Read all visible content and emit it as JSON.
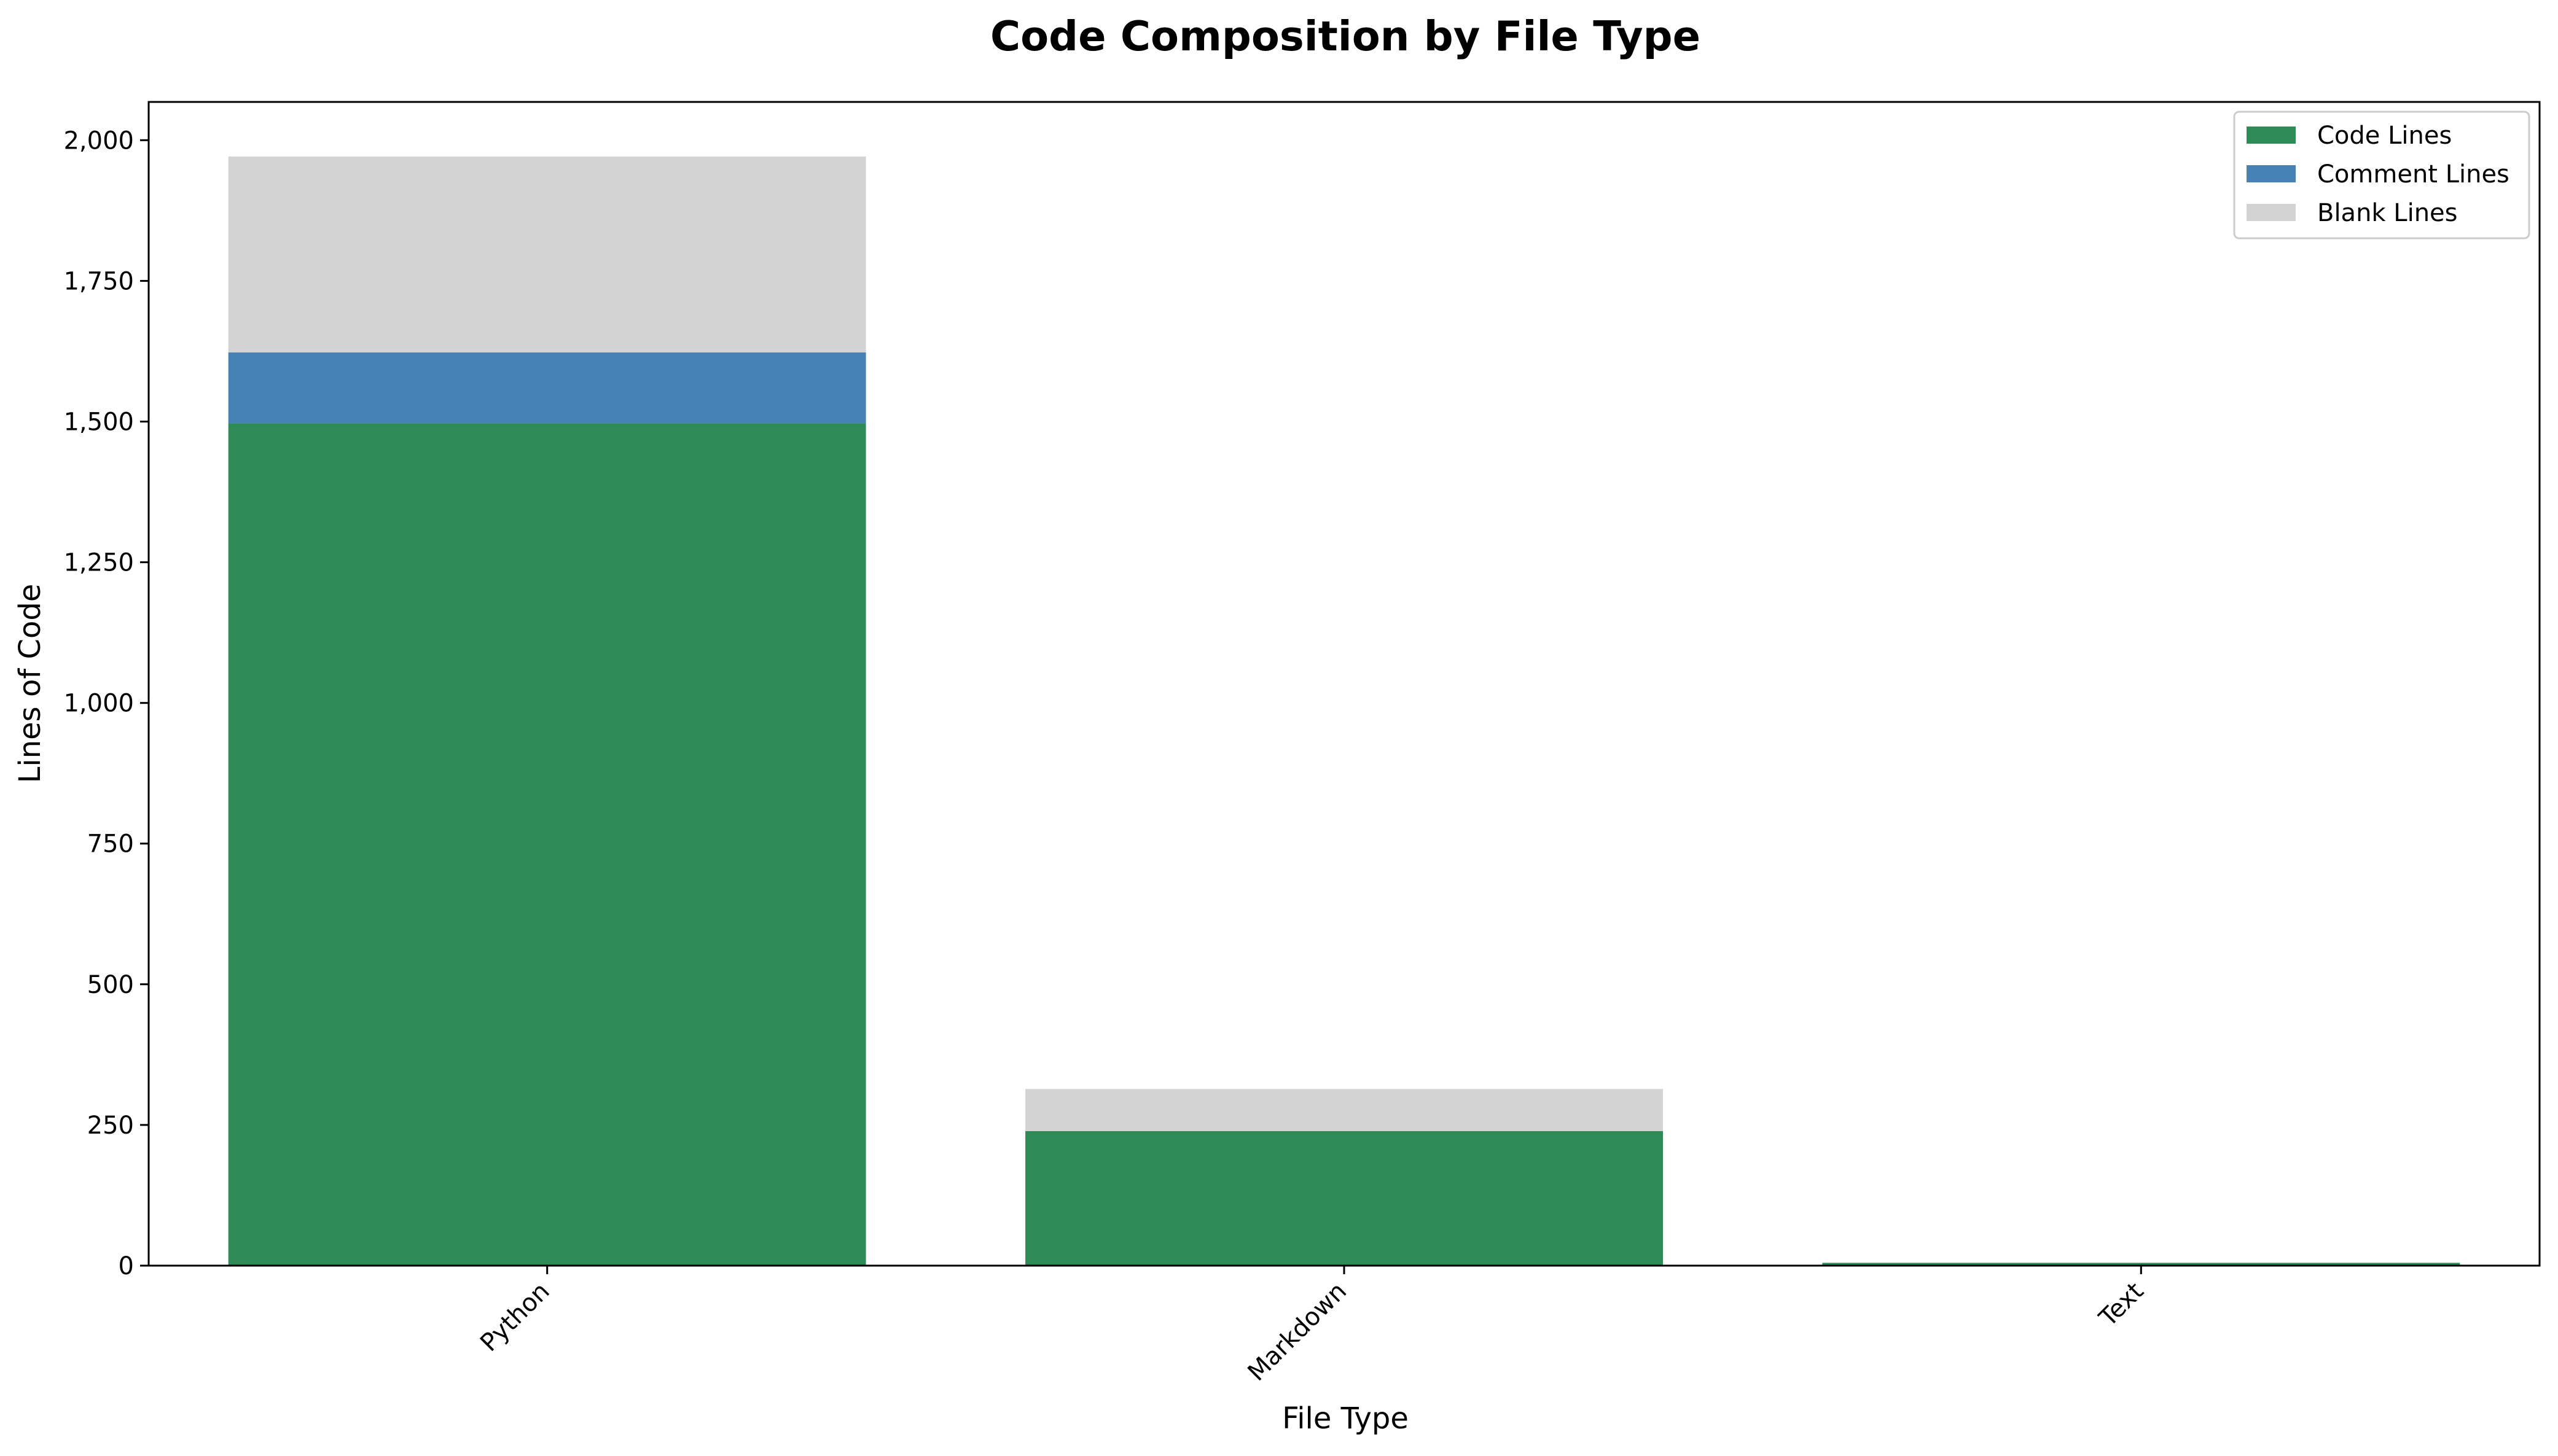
{
  "chart_data": {
    "type": "bar",
    "stacked": true,
    "title": "Code Composition by File Type",
    "xlabel": "File Type",
    "ylabel": "Lines of Code",
    "categories": [
      "Python",
      "Markdown",
      "Text"
    ],
    "series": [
      {
        "name": "Code Lines",
        "color": "#2e8b57",
        "values": [
          1497,
          239,
          5
        ]
      },
      {
        "name": "Comment Lines",
        "color": "#4682b4",
        "values": [
          126,
          0,
          0
        ]
      },
      {
        "name": "Blank Lines",
        "color": "#d3d3d3",
        "values": [
          348,
          75,
          0
        ]
      }
    ],
    "ylim": [
      0,
      2068
    ],
    "yticks": [
      0,
      250,
      500,
      750,
      1000,
      1250,
      1500,
      1750,
      2000
    ],
    "ytick_labels": [
      "0",
      "250",
      "500",
      "750",
      "1,000",
      "1,250",
      "1,500",
      "1,750",
      "2,000"
    ],
    "grid": false,
    "legend_position": "upper right",
    "xtick_rotation": 45
  }
}
